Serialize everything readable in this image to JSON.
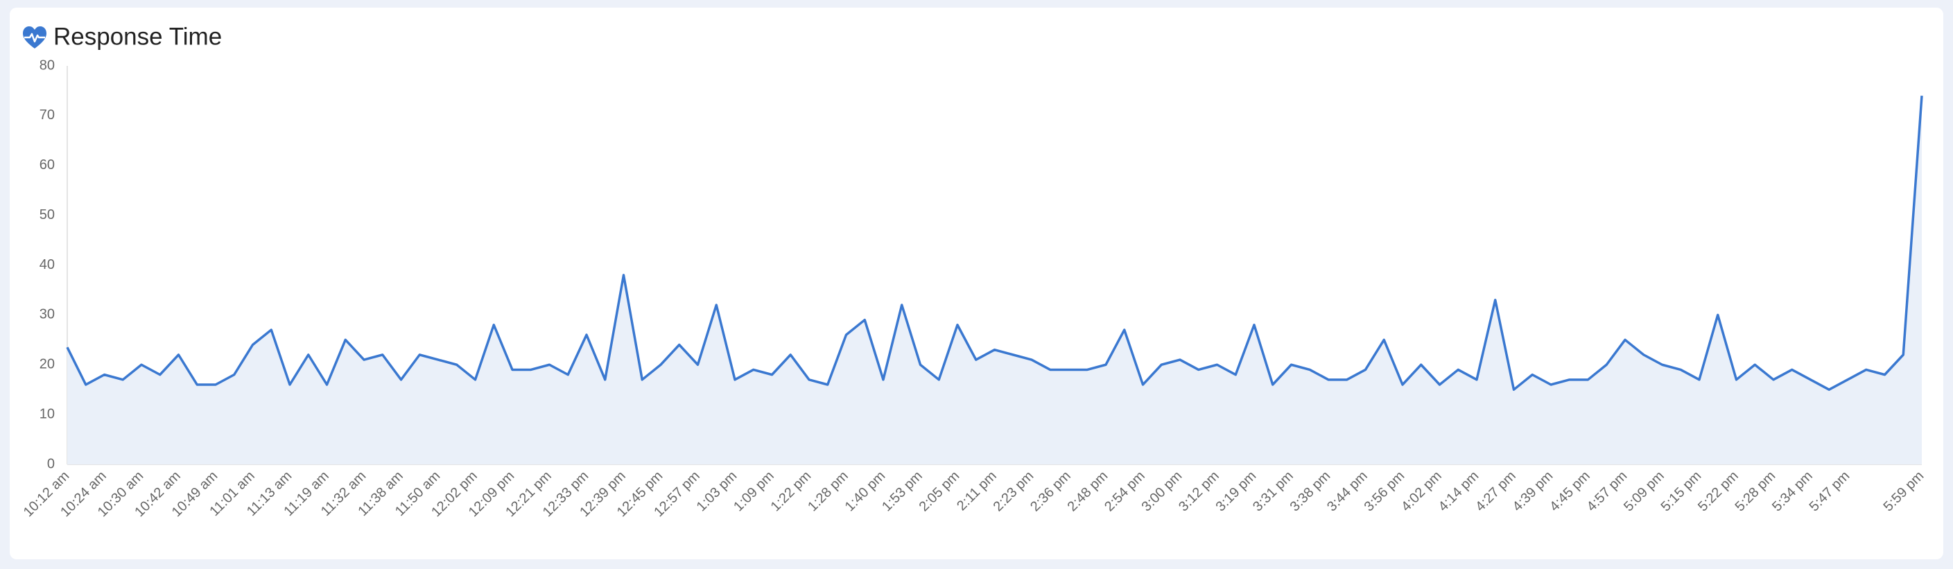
{
  "chart_data": {
    "type": "line",
    "title": "Response Time",
    "categories": [
      "10:12 am",
      null,
      "10:24 am",
      null,
      "10:30 am",
      null,
      "10:42 am",
      null,
      "10:49 am",
      null,
      "11:01 am",
      null,
      "11:13 am",
      null,
      "11:19 am",
      null,
      "11:32 am",
      null,
      "11:38 am",
      null,
      "11:50 am",
      null,
      "12:02 pm",
      null,
      "12:09 pm",
      null,
      "12:21 pm",
      null,
      "12:33 pm",
      null,
      "12:39 pm",
      null,
      "12:45 pm",
      null,
      "12:57 pm",
      null,
      "1:03 pm",
      null,
      "1:09 pm",
      null,
      "1:22 pm",
      null,
      "1:28 pm",
      null,
      "1:40 pm",
      null,
      "1:53 pm",
      null,
      "2:05 pm",
      null,
      "2:11 pm",
      null,
      "2:23 pm",
      null,
      "2:36 pm",
      null,
      "2:48 pm",
      null,
      "2:54 pm",
      null,
      "3:00 pm",
      null,
      "3:12 pm",
      null,
      "3:19 pm",
      null,
      "3:31 pm",
      null,
      "3:38 pm",
      null,
      "3:44 pm",
      null,
      "3:56 pm",
      null,
      "4:02 pm",
      null,
      "4:14 pm",
      null,
      "4:27 pm",
      null,
      "4:39 pm",
      null,
      "4:45 pm",
      null,
      "4:57 pm",
      null,
      "5:09 pm",
      null,
      "5:15 pm",
      null,
      "5:22 pm",
      null,
      "5:28 pm",
      null,
      "5:34 pm",
      null,
      "5:47 pm",
      null,
      null,
      null,
      "5:59 pm"
    ],
    "values": [
      23.5,
      16,
      18,
      17,
      20,
      18,
      22,
      16,
      16,
      18,
      24,
      27,
      16,
      22,
      16,
      25,
      21,
      22,
      17,
      22,
      21,
      20,
      17,
      28,
      19,
      19,
      20,
      18,
      26,
      17,
      38,
      17,
      20,
      24,
      20,
      32,
      17,
      19,
      18,
      22,
      17,
      16,
      26,
      29,
      17,
      32,
      20,
      17,
      28,
      21,
      23,
      22,
      21,
      19,
      19,
      19,
      20,
      27,
      16,
      20,
      21,
      19,
      20,
      18,
      28,
      16,
      20,
      19,
      17,
      17,
      19,
      25,
      16,
      20,
      16,
      19,
      17,
      33,
      15,
      18,
      16,
      17,
      17,
      20,
      25,
      22,
      20,
      19,
      17,
      30,
      17,
      20,
      17,
      19,
      17,
      15,
      17,
      19,
      18,
      22,
      74
    ],
    "color": "#3a78d0",
    "fill": "#eaf0f9",
    "ylim": [
      0,
      80
    ],
    "yticks": [
      0,
      10,
      20,
      30,
      40,
      50,
      60,
      70,
      80
    ],
    "grid": false
  }
}
